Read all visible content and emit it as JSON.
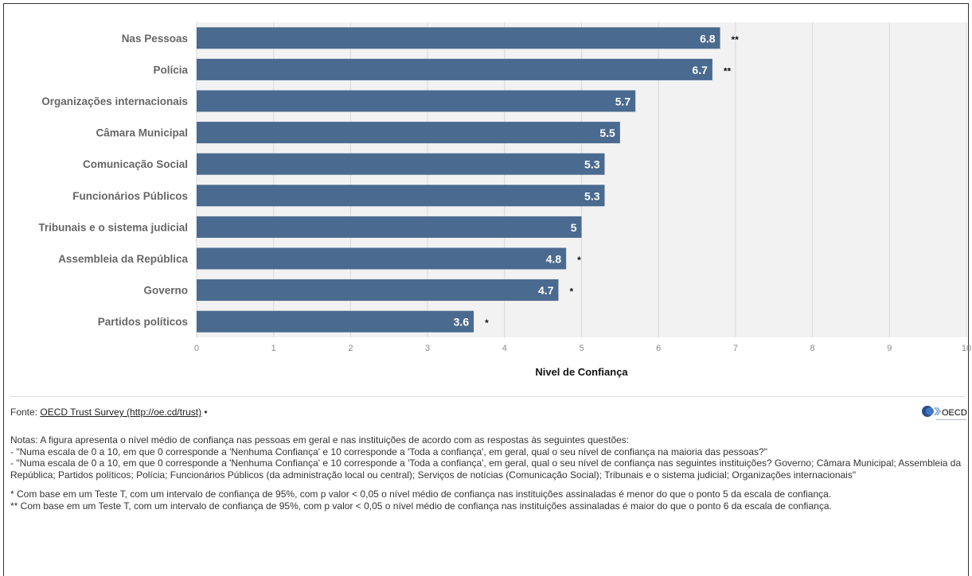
{
  "chart_data": {
    "type": "bar",
    "orientation": "horizontal",
    "categories": [
      "Nas Pessoas",
      "Polícia",
      "Organizações internacionais",
      "Câmara Municipal",
      "Comunicação Social",
      "Funcionários Públicos",
      "Tribunais e o sistema judicial",
      "Assembleia da República",
      "Governo",
      "Partidos políticos"
    ],
    "values": [
      6.8,
      6.7,
      5.7,
      5.5,
      5.3,
      5.3,
      5,
      4.8,
      4.7,
      3.6
    ],
    "value_labels": [
      "6.8",
      "6.7",
      "5.7",
      "5.5",
      "5.3",
      "5.3",
      "5",
      "4.8",
      "4.7",
      "3.6"
    ],
    "markers": [
      "**",
      "**",
      "",
      "",
      "",
      "",
      "",
      "*",
      "*",
      "*"
    ],
    "xlabel": "Nivel de Confiança",
    "ylabel": "",
    "xlim": [
      0,
      10
    ],
    "xticks": [
      "0",
      "1",
      "2",
      "3",
      "4",
      "5",
      "6",
      "7",
      "8",
      "9",
      "10"
    ],
    "grid": true,
    "colors": {
      "bar": "#4a6a8f",
      "plot_bg": "#f2f2f2",
      "grid": "#d9d9d9"
    }
  },
  "footer": {
    "source_prefix": "Fonte: ",
    "source_link": "OECD Trust Survey (http://oe.cd/trust)",
    "source_suffix": " •",
    "logo_text": "OECD"
  },
  "notes": {
    "line1": "Notas: A figura apresenta o nível médio de confiança nas pessoas em geral e nas instituições de acordo com as respostas às seguintes questões:",
    "line2": "- \"Numa escala de 0 a 10, em que 0 corresponde a 'Nenhuma Confiança' e 10 corresponde a 'Toda a confiança', em geral, qual o seu nível de confiança na maioria das pessoas?\"",
    "line3": "- \"Numa escala de 0 a 10, em que 0 corresponde a 'Nenhuma Confiança' e 10 corresponde a 'Toda a confiança', em geral, qual o seu nível de confiança nas seguintes instituições? Governo; Câmara Municipal; Assembleia da República; Partidos políticos; Polícia; Funcionários Públicos (da administração local ou central); Serviços de notícias (Comunicação Social); Tribunais e o sistema judicial; Organizações internacionais\"",
    "line4": "* Com base em um Teste T, com um intervalo de confiança de 95%, com p valor < 0,05 o nível médio de confiança nas instituições assinaladas é menor do que o ponto 5 da escala de confiança.",
    "line5": "** Com base em um Teste T, com um intervalo de confiança de 95%, com p valor < 0,05 o nível médio de confiança nas instituições assinaladas é maior do que o ponto 6 da escala de confiança."
  }
}
